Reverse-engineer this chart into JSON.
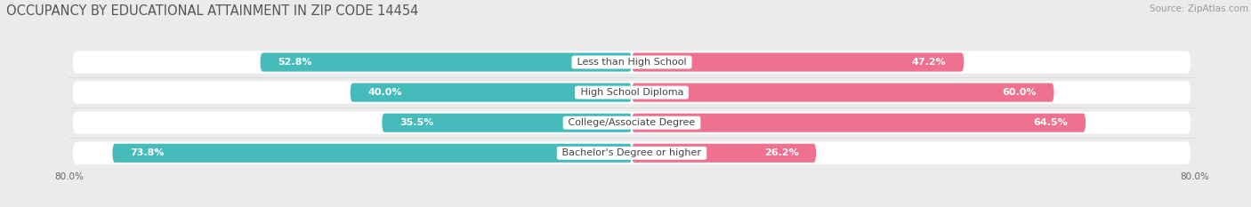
{
  "title": "OCCUPANCY BY EDUCATIONAL ATTAINMENT IN ZIP CODE 14454",
  "source": "Source: ZipAtlas.com",
  "categories": [
    "Less than High School",
    "High School Diploma",
    "College/Associate Degree",
    "Bachelor's Degree or higher"
  ],
  "owner_pct": [
    52.8,
    40.0,
    35.5,
    73.8
  ],
  "renter_pct": [
    47.2,
    60.0,
    64.5,
    26.2
  ],
  "owner_color": "#45BBBB",
  "renter_color": "#F07090",
  "background_color": "#ebebeb",
  "bar_background": "#ffffff",
  "row_bg_color": "#f5f5f5",
  "xlim_left": -80.0,
  "xlim_right": 80.0,
  "bar_height": 0.62,
  "title_fontsize": 10.5,
  "label_fontsize": 8.0,
  "pct_fontsize": 8.0,
  "source_fontsize": 7.5,
  "tick_fontsize": 7.5
}
